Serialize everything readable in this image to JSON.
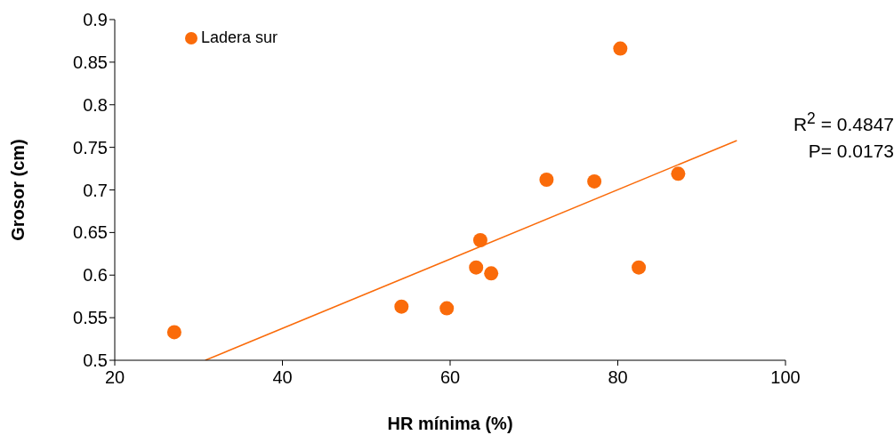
{
  "chart_data": {
    "type": "scatter",
    "xlabel": "HR mínima (%)",
    "ylabel": "Grosor (cm)",
    "xlim": [
      20,
      100
    ],
    "xticks": [
      20,
      40,
      60,
      80,
      100
    ],
    "ylim": [
      0.5,
      0.9
    ],
    "yticks": [
      0.5,
      0.55,
      0.6,
      0.65,
      0.7,
      0.75,
      0.8,
      0.85,
      0.9
    ],
    "legend": "top left",
    "series": [
      {
        "name": "Ladera sur",
        "color": "#fa6b0a",
        "marker": "circle",
        "x": [
          27.1,
          54.2,
          59.6,
          63.1,
          63.6,
          64.9,
          71.5,
          77.2,
          80.3,
          82.5,
          87.2
        ],
        "values": [
          0.533,
          0.563,
          0.561,
          0.609,
          0.641,
          0.602,
          0.712,
          0.71,
          0.866,
          0.609,
          0.719
        ]
      },
      {
        "type": "line",
        "color": "#fa6b0a",
        "x": [
          30.8,
          94.2
        ],
        "values": [
          0.5,
          0.758
        ]
      }
    ],
    "annotations": [
      "R$^{2}$ = 0.4847",
      "P= 0.0173"
    ]
  }
}
